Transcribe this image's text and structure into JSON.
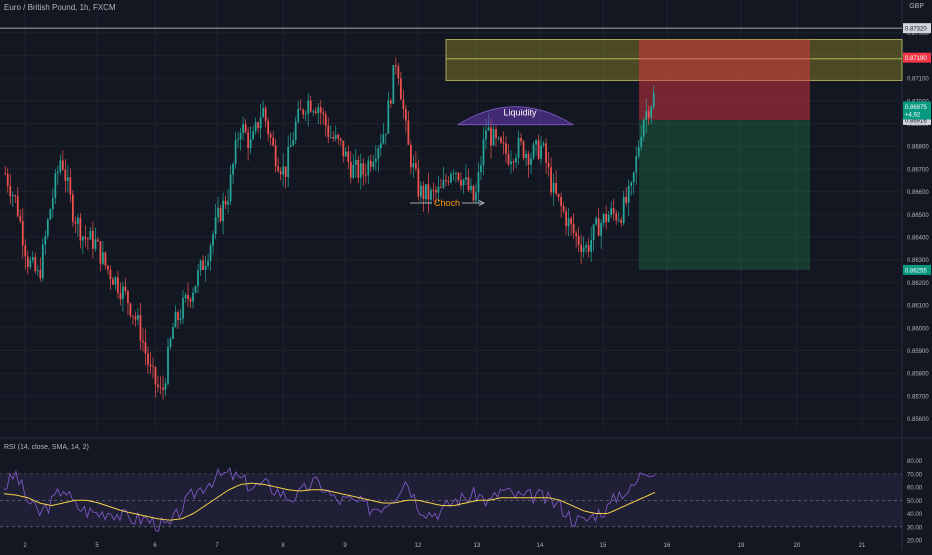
{
  "header": {
    "symbol_title": "Euro / British Pound, 1h, FXCM",
    "currency": "GBP"
  },
  "chart_data": [
    {
      "type": "candlestick",
      "title": "Euro / British Pound, 1h, FXCM",
      "ylim": [
        0.8555,
        0.874
      ],
      "y_ticks": [
        "0.87300",
        "0.87200",
        "0.87100",
        "0.87000",
        "0.86900",
        "0.86800",
        "0.86700",
        "0.86600",
        "0.86500",
        "0.86400",
        "0.86300",
        "0.86200",
        "0.86100",
        "0.86000",
        "0.85900",
        "0.85800",
        "0.85700",
        "0.85600"
      ],
      "x_ticks": [
        "2",
        "5",
        "6",
        "7",
        "8",
        "9",
        "12",
        "13",
        "14",
        "15",
        "16",
        "19",
        "20",
        "21"
      ],
      "price_path_hint": [
        0.8668,
        0.8655,
        0.863,
        0.8622,
        0.8652,
        0.8676,
        0.8652,
        0.864,
        0.8638,
        0.8627,
        0.862,
        0.8612,
        0.86,
        0.858,
        0.857,
        0.86,
        0.861,
        0.862,
        0.8632,
        0.8648,
        0.866,
        0.869,
        0.868,
        0.8697,
        0.8678,
        0.8668,
        0.869,
        0.87,
        0.8698,
        0.8685,
        0.868,
        0.867,
        0.8668,
        0.8678,
        0.8688,
        0.872,
        0.868,
        0.866,
        0.8658,
        0.866,
        0.8672,
        0.8665,
        0.8655,
        0.8688,
        0.868,
        0.8676,
        0.868,
        0.8676,
        0.868,
        0.866,
        0.865,
        0.864,
        0.8635,
        0.8645,
        0.865,
        0.865,
        0.866,
        0.8692,
        0.8702
      ],
      "annotations": {
        "choch_label": "Choch",
        "choch_price": 0.8655,
        "liquidity_label": "Liquidity",
        "liquidity_price": 0.8693,
        "horizontal_line_price": 0.8732,
        "zone_top": 0.8727,
        "zone_bottom": 0.8709,
        "zone_mid": 0.87185,
        "target_price": 0.86255
      },
      "price_labels": {
        "top_line": "0.87320",
        "stop": "0.87190",
        "entry": "0.86916",
        "current": "0.86975",
        "current_change": "+4.92",
        "target": "0.86255"
      }
    },
    {
      "type": "line",
      "title": "RSI (14, close, SMA, 14, 2)",
      "ylim": [
        20,
        82
      ],
      "y_ticks": [
        "80.00",
        "70.00",
        "60.00",
        "50.00",
        "40.00",
        "30.00",
        "20.00"
      ],
      "overbought": 70,
      "oversold": 30,
      "middle": 50,
      "rsi_hint": [
        60,
        70,
        50,
        40,
        48,
        60,
        46,
        42,
        40,
        42,
        38,
        36,
        36,
        32,
        30,
        44,
        55,
        62,
        68,
        70,
        66,
        60,
        62,
        58,
        52,
        54,
        64,
        60,
        50,
        50,
        48,
        44,
        46,
        54,
        66,
        46,
        40,
        42,
        50,
        52,
        55,
        48,
        58,
        54,
        52,
        54,
        50,
        46,
        36,
        34,
        40,
        44,
        56,
        58,
        72,
        74
      ],
      "sma_hint": [
        55,
        54,
        52,
        48,
        46,
        48,
        50,
        50,
        48,
        45,
        42,
        40,
        38,
        36,
        35,
        36,
        40,
        46,
        52,
        58,
        62,
        63,
        62,
        60,
        58,
        57,
        58,
        58,
        56,
        54,
        52,
        50,
        48,
        48,
        50,
        50,
        48,
        46,
        46,
        48,
        50,
        50,
        52,
        52,
        52,
        52,
        52,
        50,
        46,
        42,
        40,
        40,
        44,
        48,
        52,
        56
      ]
    }
  ]
}
